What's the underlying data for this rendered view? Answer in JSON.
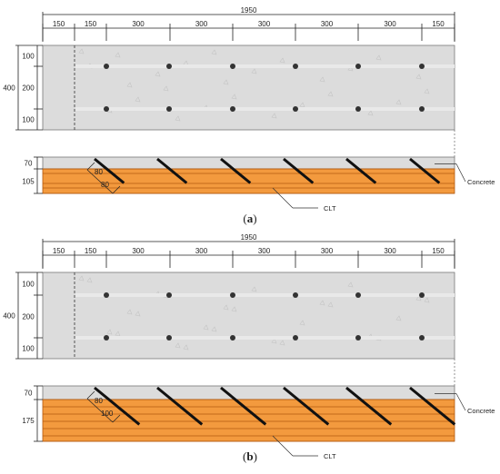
{
  "panels": [
    {
      "id": "a",
      "caption_open": "(",
      "caption_letter": "a",
      "caption_close": ")",
      "total_width": "1950",
      "top_segments": [
        "150",
        "150",
        "300",
        "300",
        "300",
        "300",
        "300",
        "150"
      ],
      "plan_height": "400",
      "plan_rows": [
        "100",
        "200",
        "100"
      ],
      "concrete_thickness": "70",
      "clt_thickness": "105",
      "screw_dim_1": "80",
      "screw_dim_2": "80",
      "concrete_label": "Concrete",
      "clt_label": "CLT"
    },
    {
      "id": "b",
      "caption_open": "(",
      "caption_letter": "b",
      "caption_close": ")",
      "total_width": "1950",
      "top_segments": [
        "150",
        "150",
        "300",
        "300",
        "300",
        "300",
        "300",
        "150"
      ],
      "plan_height": "400",
      "plan_rows": [
        "100",
        "200",
        "100"
      ],
      "concrete_thickness": "70",
      "clt_thickness": "175",
      "screw_dim_1": "80",
      "screw_dim_2": "100",
      "concrete_label": "Concrete",
      "clt_label": "CLT"
    }
  ],
  "colors": {
    "concrete": "#dcdcdc",
    "clt": "#f39a3e",
    "clt_line": "#b35a10",
    "screw": "#111111",
    "dot": "#333333"
  }
}
